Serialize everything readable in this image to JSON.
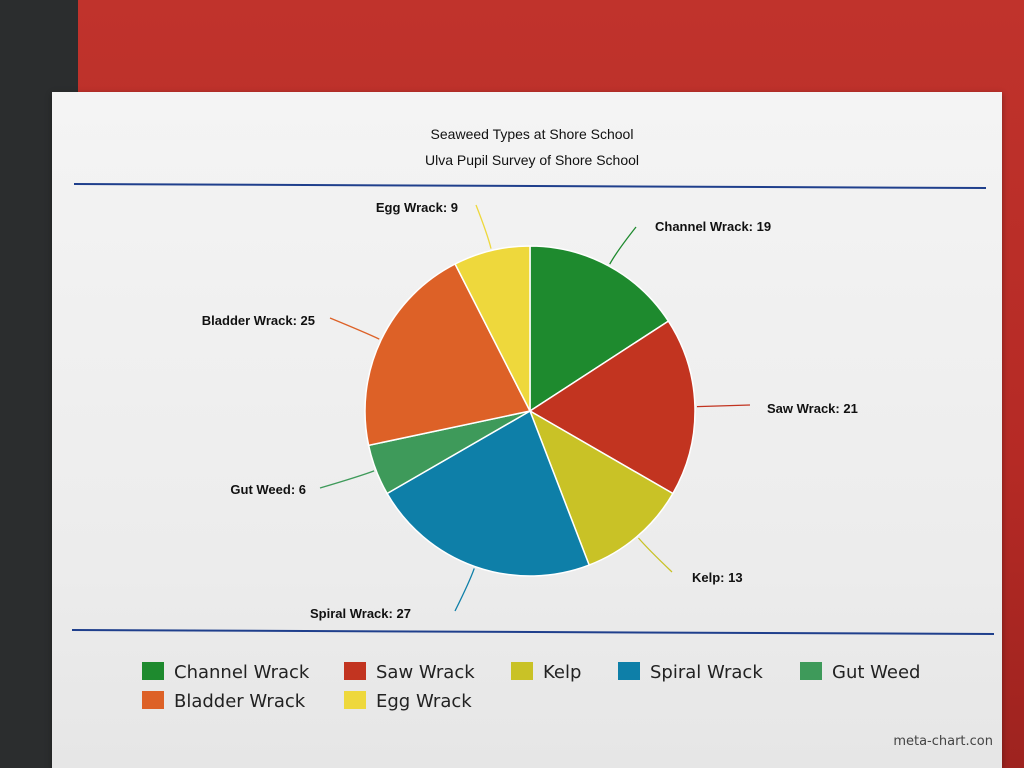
{
  "chart_data": {
    "type": "pie",
    "title": "Seaweed Types at Shore School",
    "subtitle": "Ulva Pupil Survey of Shore School",
    "slices": [
      {
        "label": "Channel Wrack",
        "value": 19,
        "color": "#1e8a2e"
      },
      {
        "label": "Saw Wrack",
        "value": 21,
        "color": "#c23420"
      },
      {
        "label": "Kelp",
        "value": 13,
        "color": "#c9c226"
      },
      {
        "label": "Spiral Wrack",
        "value": 27,
        "color": "#0e7fa8"
      },
      {
        "label": "Gut Weed",
        "value": 6,
        "color": "#3e9a5a"
      },
      {
        "label": "Bladder Wrack",
        "value": 25,
        "color": "#dd6127"
      },
      {
        "label": "Egg Wrack",
        "value": 9,
        "color": "#eed83c"
      }
    ],
    "data_labels": [
      "Channel Wrack: 19",
      "Saw Wrack: 21",
      "Kelp: 13",
      "Spiral Wrack: 27",
      "Gut Weed: 6",
      "Bladder Wrack: 25",
      "Egg Wrack: 9"
    ],
    "legend_position": "bottom"
  },
  "credit": "meta-chart.con"
}
